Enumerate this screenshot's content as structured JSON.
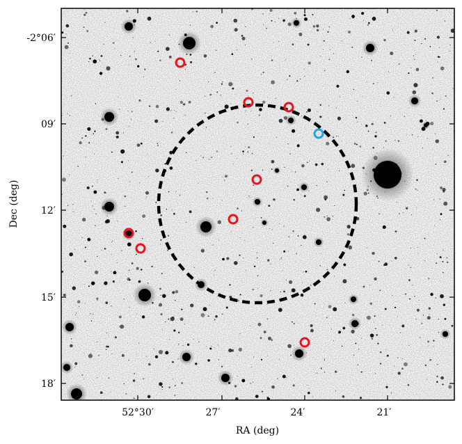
{
  "axes": {
    "xlabel": "RA (deg)",
    "ylabel": "Dec (deg)",
    "x_ticks": [
      "52°30′",
      "27′",
      "24′",
      "21′"
    ],
    "y_ticks": [
      "-2°06′",
      "09′",
      "12′",
      "15′",
      "18′"
    ]
  },
  "colors": {
    "marker_red": "#e8141c",
    "marker_blue": "#1ea7e6",
    "circle": "#000000"
  },
  "markers": {
    "red_count": 9,
    "blue_count": 1
  },
  "icons": [
    "red-circle-marker",
    "blue-circle-marker",
    "dashed-circle-region"
  ]
}
